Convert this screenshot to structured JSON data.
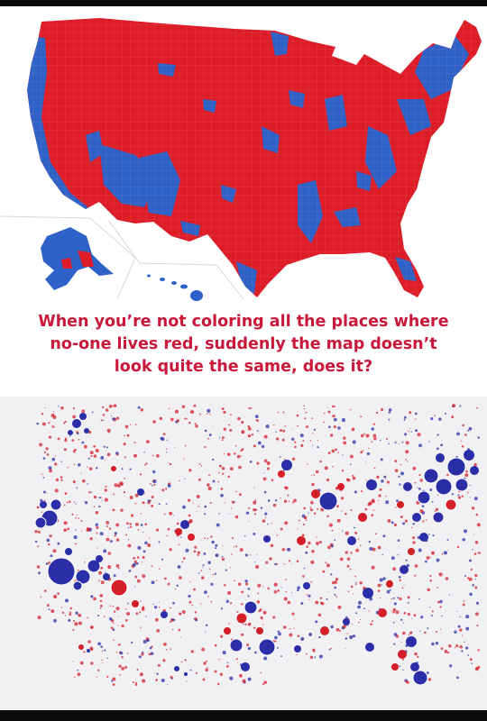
{
  "caption": {
    "lines": [
      "When you’re not coloring all the places where",
      "no-one lives red, suddenly the map doesn’t",
      "look quite the same, does it?"
    ]
  },
  "colors": {
    "red": "#dc1d27",
    "blue": "#2e62c8",
    "bubble_blue": "#2a2fa8",
    "caption_text": "#c8193a",
    "background": "#ffffff"
  },
  "maps": [
    {
      "name": "county-map",
      "fill_majority": "red",
      "fill_minority": "blue"
    },
    {
      "name": "population-bubble-map",
      "encoding": "bubble size = population"
    }
  ]
}
